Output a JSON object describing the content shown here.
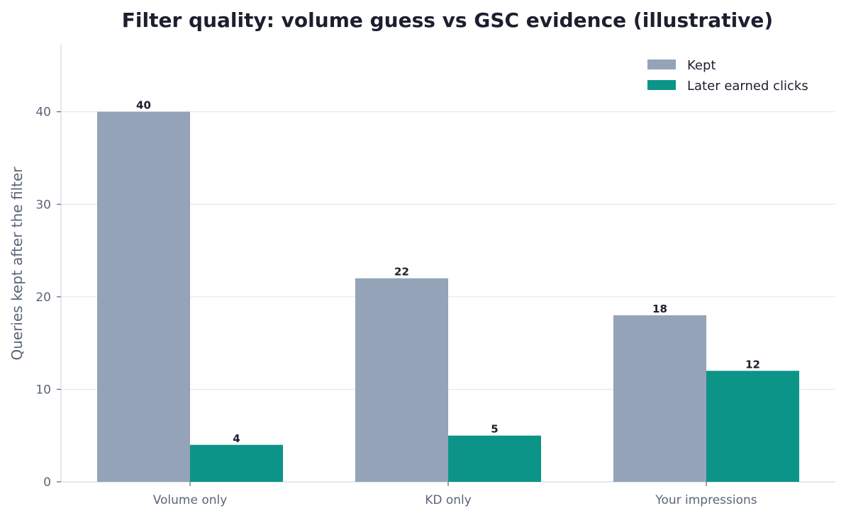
{
  "chart_data": {
    "type": "bar",
    "title": "Filter quality: volume guess vs GSC evidence (illustrative)",
    "xlabel": "",
    "ylabel": "Queries kept after the filter",
    "categories": [
      "Volume only",
      "KD only",
      "Your impressions"
    ],
    "series": [
      {
        "name": "Kept",
        "values": [
          40,
          22,
          18
        ],
        "color": "#94a3b8"
      },
      {
        "name": "Later earned clicks",
        "values": [
          4,
          5,
          12
        ],
        "color": "#0d9488"
      }
    ],
    "ylim": [
      0,
      47.25
    ],
    "yticks": [
      0,
      10,
      20,
      30,
      40
    ],
    "grid": true,
    "legend_position": "top-right"
  }
}
